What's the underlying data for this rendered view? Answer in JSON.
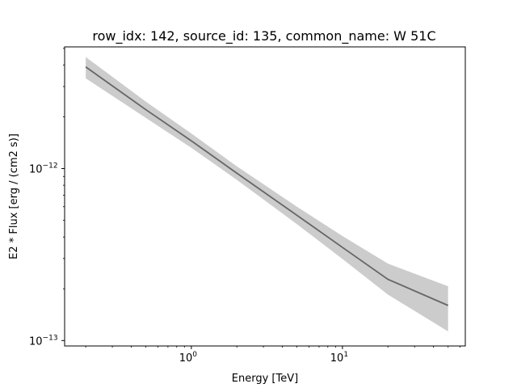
{
  "chart_data": {
    "type": "line",
    "title": "row_idx: 142, source_id: 135, common_name: W 51C",
    "xlabel": "Energy [TeV]",
    "ylabel": "E2 * Flux [erg / (cm2 s)]",
    "x_scale": "log",
    "y_scale": "log",
    "xlim": [
      0.145,
      65
    ],
    "ylim": [
      9.3e-14,
      5.1e-12
    ],
    "x_ticks": [
      {
        "value": 1,
        "label_base": "10",
        "label_exp": "0"
      },
      {
        "value": 10,
        "label_base": "10",
        "label_exp": "1"
      }
    ],
    "y_ticks": [
      {
        "value": 1e-13,
        "label_base": "10",
        "label_exp": "−13"
      },
      {
        "value": 1e-12,
        "label_base": "10",
        "label_exp": "−12"
      }
    ],
    "series": [
      {
        "color": "#666666",
        "x": [
          0.2,
          0.5,
          1,
          2,
          5,
          10,
          20,
          50
        ],
        "y": [
          3.9e-12,
          2.2e-12,
          1.45e-12,
          9.4e-13,
          5.35e-13,
          3.48e-13,
          2.27e-13,
          1.6e-13
        ]
      }
    ],
    "band": {
      "color": "#cccccc",
      "x": [
        0.2,
        0.5,
        1,
        2,
        5,
        10,
        20,
        50
      ],
      "upper": [
        4.45e-12,
        2.45e-12,
        1.6e-12,
        1.03e-12,
        6e-13,
        4.05e-13,
        2.8e-13,
        2.07e-13
      ],
      "lower": [
        3.35e-12,
        1.97e-12,
        1.32e-12,
        8.6e-13,
        4.75e-13,
        2.98e-13,
        1.85e-13,
        1.13e-13
      ]
    }
  }
}
